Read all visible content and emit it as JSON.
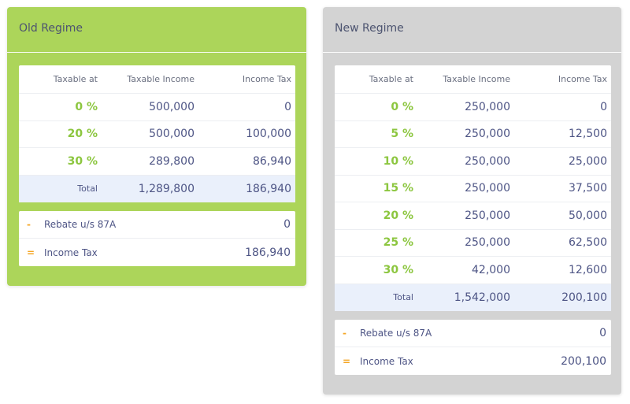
{
  "columns": [
    "Taxable at",
    "Taxable Income",
    "Income Tax"
  ],
  "old": {
    "title": "Old Regime",
    "rows": [
      {
        "rate": "0 %",
        "income": "500,000",
        "tax": "0"
      },
      {
        "rate": "20 %",
        "income": "500,000",
        "tax": "100,000"
      },
      {
        "rate": "30 %",
        "income": "289,800",
        "tax": "86,940"
      }
    ],
    "total": {
      "label": "Total",
      "income": "1,289,800",
      "tax": "186,940"
    },
    "rebate": {
      "op": "-",
      "label": "Rebate u/s 87A",
      "value": "0"
    },
    "income_tax": {
      "op": "=",
      "label": "Income Tax",
      "value": "186,940"
    }
  },
  "new": {
    "title": "New Regime",
    "rows": [
      {
        "rate": "0 %",
        "income": "250,000",
        "tax": "0"
      },
      {
        "rate": "5 %",
        "income": "250,000",
        "tax": "12,500"
      },
      {
        "rate": "10 %",
        "income": "250,000",
        "tax": "25,000"
      },
      {
        "rate": "15 %",
        "income": "250,000",
        "tax": "37,500"
      },
      {
        "rate": "20 %",
        "income": "250,000",
        "tax": "50,000"
      },
      {
        "rate": "25 %",
        "income": "250,000",
        "tax": "62,500"
      },
      {
        "rate": "30 %",
        "income": "42,000",
        "tax": "12,600"
      }
    ],
    "total": {
      "label": "Total",
      "income": "1,542,000",
      "tax": "200,100"
    },
    "rebate": {
      "op": "-",
      "label": "Rebate u/s 87A",
      "value": "0"
    },
    "income_tax": {
      "op": "=",
      "label": "Income Tax",
      "value": "200,100"
    }
  },
  "colors": {
    "old": "#acd55a",
    "new": "#d3d3d3",
    "rate": "#8cc63f",
    "operator": "#f5a623",
    "total_bg": "#eaf0fb"
  }
}
